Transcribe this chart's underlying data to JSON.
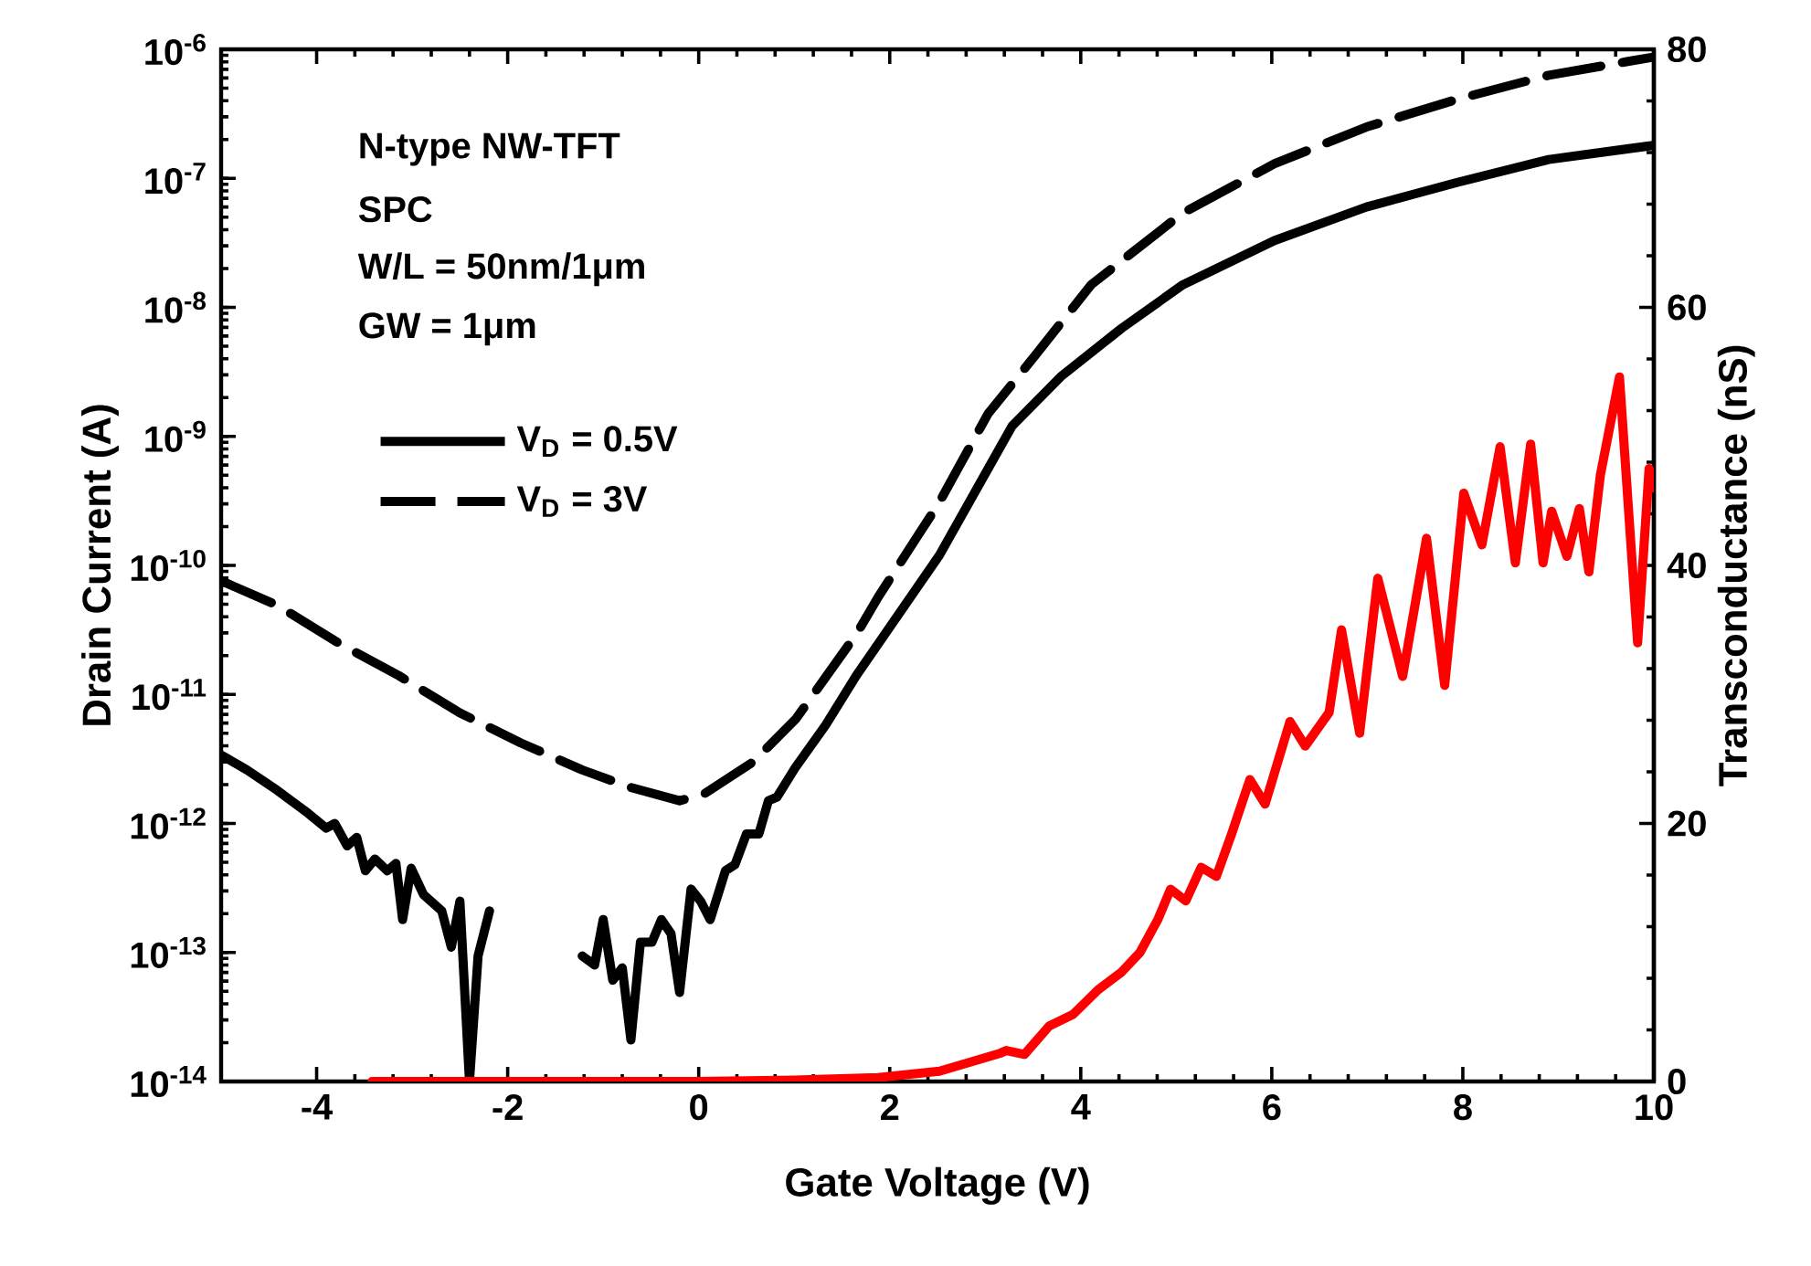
{
  "chart_data": {
    "type": "line",
    "xlabel": "Gate Voltage (V)",
    "ylabel": "Drain Current (A)",
    "y2label": "Transconductance (nS)",
    "annotations": [
      "N-type NW-TFT",
      "SPC",
      "W/L = 50nm/1μm",
      "GW = 1μm"
    ],
    "log": "y",
    "legend": "top left",
    "xlim": [
      -5,
      10
    ],
    "xticks": [
      -4,
      -2,
      0,
      2,
      4,
      6,
      8,
      10
    ],
    "ylim": [
      1e-14,
      1e-06
    ],
    "yticks": [
      {
        "value": 1e-14,
        "label": "10$^{-14}$"
      },
      {
        "value": 1e-13,
        "label": "10$^{-13}$"
      },
      {
        "value": 1e-12,
        "label": "10$^{-12}$"
      },
      {
        "value": 1e-11,
        "label": "10$^{-11}$"
      },
      {
        "value": 1e-10,
        "label": "10$^{-10}$"
      },
      {
        "value": 1e-09,
        "label": "10$^{-9}$"
      },
      {
        "value": 1e-08,
        "label": "10$^{-8}$"
      },
      {
        "value": 1e-07,
        "label": "10$^{-7}$"
      },
      {
        "value": 1e-06,
        "label": "10$^{-6}$"
      }
    ],
    "y2lim": [
      0,
      80
    ],
    "y2ticks": [
      0,
      20,
      40,
      60,
      80
    ],
    "series": [
      {
        "name": "V$_{D}$ = 0.5V",
        "line_style": "solid",
        "color": "#000000",
        "x": [
          -5.0,
          -4.73,
          -4.41,
          -4.09,
          -3.9,
          -3.81,
          -3.68,
          -3.58,
          -3.49,
          -3.39,
          -3.26,
          -3.17,
          -3.1,
          -3.01,
          -2.88,
          -2.69,
          -2.59,
          -2.5,
          -2.4,
          -2.31,
          -2.19,
          -1.7,
          -1.22,
          -1.09,
          -1.0,
          -0.9,
          -0.8,
          -0.71,
          -0.61,
          -0.49,
          -0.39,
          -0.29,
          -0.2,
          -0.08,
          0.02,
          0.12,
          0.28,
          0.38,
          0.5,
          0.63,
          0.73,
          0.82,
          1.01,
          1.33,
          1.65,
          2.52,
          3.28,
          3.79,
          4.43,
          5.07,
          6.03,
          6.99,
          7.94,
          8.9,
          9.99
        ],
        "values": [
          3.4e-12,
          2.6e-12,
          1.8e-12,
          1.2e-12,
          9.2e-13,
          1e-12,
          6.7e-13,
          7.8e-13,
          4.3e-13,
          5.3e-13,
          4.3e-13,
          4.9e-13,
          1.8e-13,
          4.5e-13,
          2.8e-13,
          2.1e-13,
          1.1e-13,
          2.5e-13,
          1e-14,
          9.4e-14,
          2.1e-13,
          null,
          9.4e-14,
          8e-14,
          1.8e-13,
          6.1e-14,
          7.6e-14,
          2.1e-14,
          1.2e-13,
          1.2e-13,
          1.8e-13,
          1.4e-13,
          4.9e-14,
          3.1e-13,
          2.5e-13,
          1.8e-13,
          4.3e-13,
          4.8e-13,
          8.3e-13,
          8.3e-13,
          1.5e-12,
          1.6e-12,
          2.7e-12,
          5.8e-12,
          1.4e-11,
          1.2e-10,
          1.2e-09,
          2.9e-09,
          6.9e-09,
          1.5e-08,
          3.3e-08,
          6e-08,
          9.3e-08,
          1.4e-07,
          1.8e-07
        ]
      },
      {
        "name": "V$_{D}$ = 3V",
        "line_style": "dashed",
        "color": "#000000",
        "x": [
          -5.0,
          -4.41,
          -3.77,
          -3.14,
          -2.5,
          -1.86,
          -1.22,
          -0.71,
          -0.2,
          0.06,
          0.57,
          1.02,
          1.66,
          1.88,
          2.51,
          3.03,
          3.54,
          4.11,
          5.07,
          6.03,
          6.99,
          7.94,
          8.9,
          9.99
        ],
        "values": [
          7.6e-11,
          4.9e-11,
          2.5e-11,
          1.4e-11,
          7.2e-12,
          4.2e-12,
          2.6e-12,
          1.9e-12,
          1.5e-12,
          1.7e-12,
          3e-12,
          6.5e-12,
          3e-11,
          5.7e-11,
          3e-10,
          1.5e-09,
          4.4e-09,
          1.5e-08,
          5.4e-08,
          1.3e-07,
          2.5e-07,
          4.1e-07,
          6.3e-07,
          8.7e-07
        ]
      },
      {
        "line_style": "solid",
        "color": "#ff0000",
        "axis": "y2",
        "x": [
          -3.42,
          0.0,
          1.0,
          1.88,
          2.52,
          3.16,
          3.22,
          3.41,
          3.67,
          3.92,
          4.18,
          4.43,
          4.62,
          4.81,
          4.94,
          5.1,
          5.26,
          5.42,
          5.58,
          5.77,
          5.93,
          6.19,
          6.35,
          6.6,
          6.73,
          6.92,
          7.11,
          7.37,
          7.62,
          7.81,
          8.01,
          8.2,
          8.39,
          8.55,
          8.71,
          8.84,
          8.93,
          9.09,
          9.22,
          9.32,
          9.44,
          9.64,
          9.83,
          9.95,
          10.0
        ],
        "values": [
          0,
          0,
          0.1,
          0.3,
          0.8,
          2.2,
          2.4,
          2.1,
          4.3,
          5.2,
          7.1,
          8.5,
          10.0,
          12.6,
          14.9,
          14.0,
          16.6,
          15.9,
          19.2,
          23.4,
          21.5,
          27.9,
          26.0,
          28.6,
          35.0,
          27.0,
          39.0,
          31.4,
          42.1,
          30.7,
          45.6,
          41.6,
          49.2,
          40.2,
          49.4,
          40.2,
          44.2,
          40.7,
          44.4,
          39.5,
          47.0,
          54.6,
          34.0,
          47.5,
          46.0
        ]
      }
    ]
  }
}
